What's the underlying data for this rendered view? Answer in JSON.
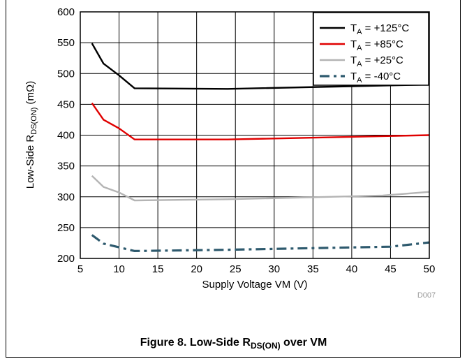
{
  "figure": {
    "code": "D007",
    "caption": {
      "prefix": "Figure 8. Low-Side R",
      "sub": "DS(ON)",
      "suffix": " over VM"
    }
  },
  "chart_data": {
    "type": "line",
    "xlabel": "Supply Voltage VM (V)",
    "ylabel": {
      "prefix": "Low-Side R",
      "sub": "DS(ON)",
      "suffix": " (mΩ)"
    },
    "xlim": [
      5,
      50
    ],
    "ylim": [
      200,
      600
    ],
    "xticks": [
      5,
      10,
      15,
      20,
      25,
      30,
      35,
      40,
      45,
      50
    ],
    "yticks": [
      200,
      250,
      300,
      350,
      400,
      450,
      500,
      550,
      600
    ],
    "grid": true,
    "legend_position": "top-right",
    "series": [
      {
        "label": {
          "prefix": "T",
          "sub": "A",
          "suffix": " = +125°C"
        },
        "color": "#000000",
        "dash": "solid",
        "x": [
          6.5,
          8,
          10,
          12,
          24,
          50
        ],
        "y": [
          549,
          516,
          497,
          476,
          475,
          482
        ]
      },
      {
        "label": {
          "prefix": "T",
          "sub": "A",
          "suffix": " = +85°C"
        },
        "color": "#e00000",
        "dash": "solid",
        "x": [
          6.5,
          8,
          10,
          12,
          24,
          50
        ],
        "y": [
          452,
          425,
          411,
          393,
          393,
          400
        ]
      },
      {
        "label": {
          "prefix": "T",
          "sub": "A",
          "suffix": " = +25°C"
        },
        "color": "#b4b4b4",
        "dash": "solid",
        "x": [
          6.5,
          8,
          10,
          12,
          24,
          44,
          50
        ],
        "y": [
          334,
          316,
          307,
          294,
          296,
          302,
          308
        ]
      },
      {
        "label": {
          "prefix": "T",
          "sub": "A",
          "suffix": " = -40°C"
        },
        "color": "#2e5a6e",
        "dash": "dashdot",
        "x": [
          6.5,
          8,
          10,
          12,
          24,
          45,
          50
        ],
        "y": [
          238,
          224,
          218,
          212,
          214,
          219,
          226
        ]
      }
    ]
  }
}
